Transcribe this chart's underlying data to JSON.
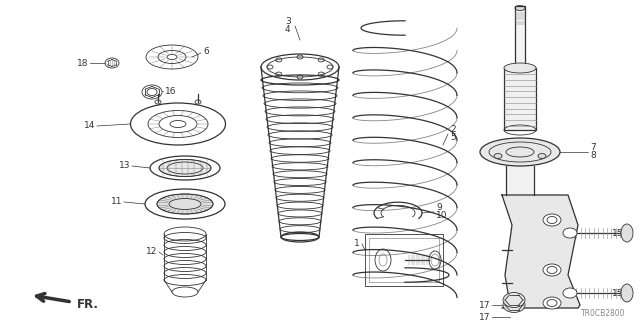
{
  "background_color": "#ffffff",
  "diagram_code": "TR0CB2800",
  "line_color": "#333333",
  "gray_color": "#888888",
  "label_fontsize": 6.5,
  "code_fontsize": 5.5,
  "figsize": [
    6.4,
    3.2
  ],
  "dpi": 100
}
